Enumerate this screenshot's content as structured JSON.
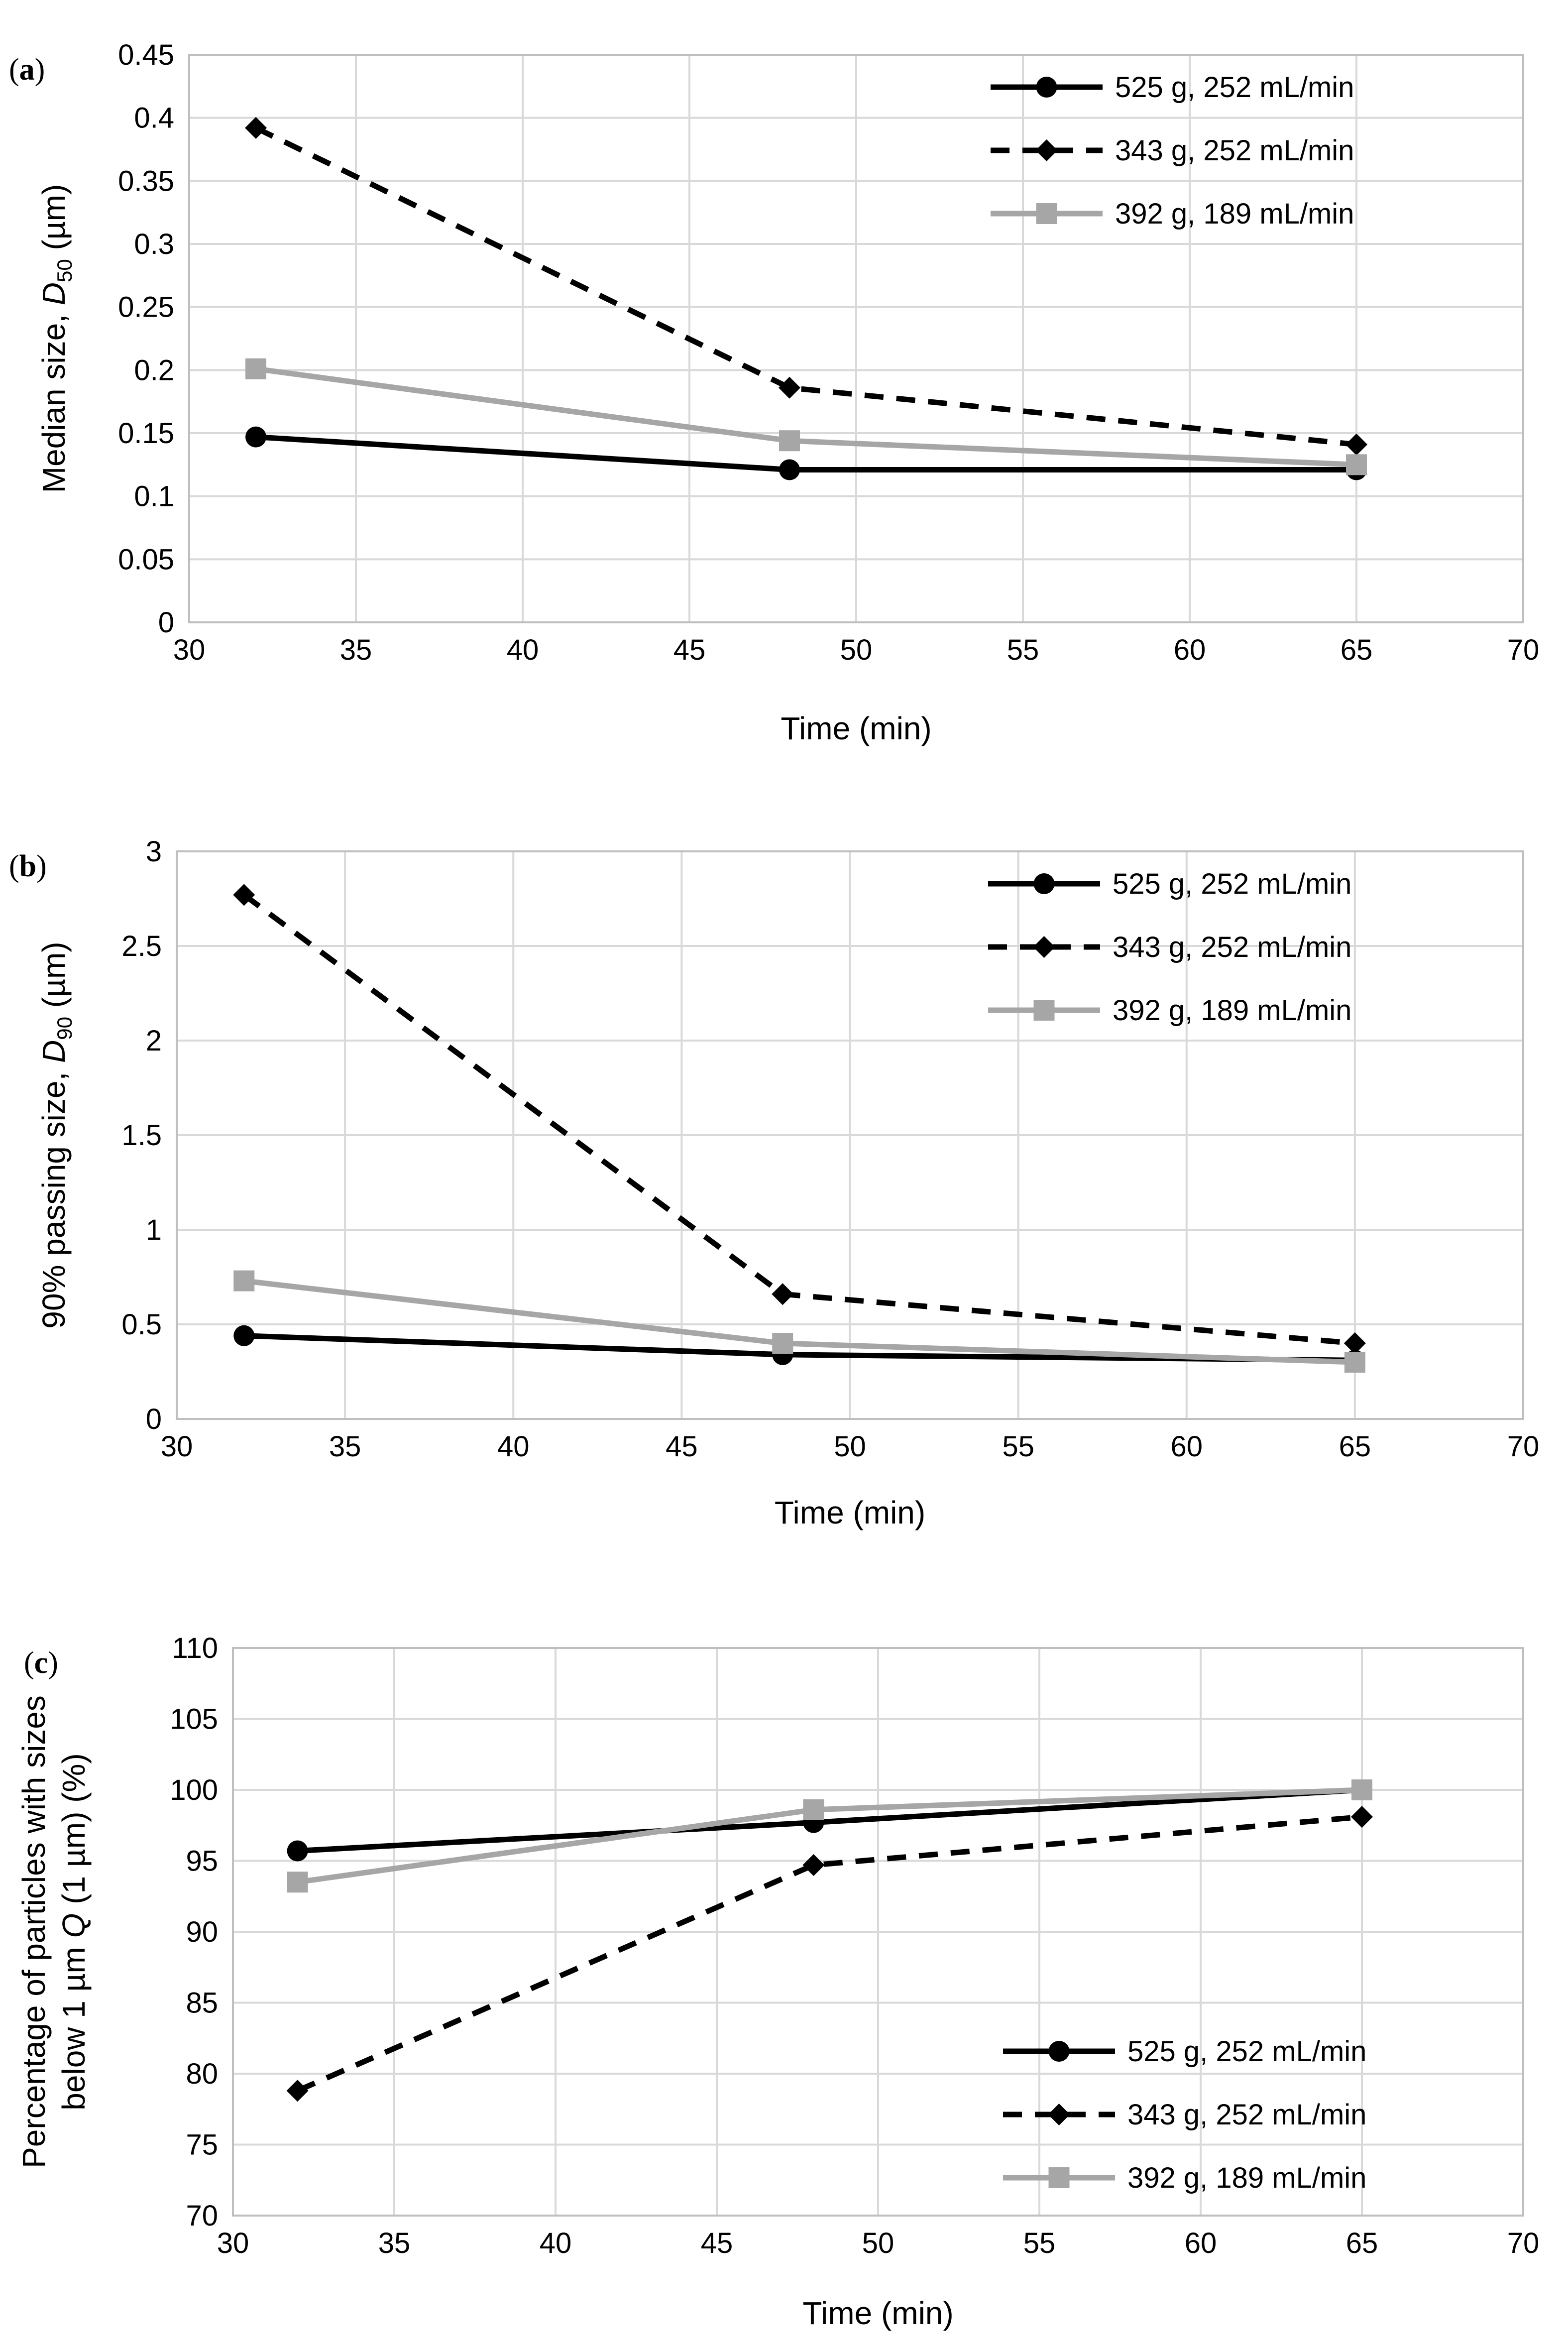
{
  "chart_data": [
    {
      "type": "line",
      "panel_label": "(a)",
      "title": "",
      "xlabel": "Time (min)",
      "ylabel": "Median size, D50 (µm)",
      "ylabel_parts": {
        "prefix": "Median size, ",
        "italic": "D",
        "subscript": "50",
        "suffix": " (µm)"
      },
      "xlim": [
        30,
        70
      ],
      "ylim": [
        0,
        0.45
      ],
      "x_ticks": [
        "30",
        "35",
        "40",
        "45",
        "50",
        "55",
        "60",
        "65",
        "70"
      ],
      "y_ticks": [
        "0",
        "0.05",
        "0.1",
        "0.15",
        "0.2",
        "0.25",
        "0.3",
        "0.35",
        "0.4",
        "0.45"
      ],
      "grid": true,
      "legend": "top-right",
      "x": [
        32,
        48,
        65
      ],
      "series": [
        {
          "name": "525 g, 252 mL/min",
          "values": [
            0.147,
            0.121,
            0.121
          ],
          "color": "#000000",
          "dash": "solid",
          "marker": "circle"
        },
        {
          "name": "343 g, 252 mL/min",
          "values": [
            0.392,
            0.186,
            0.141
          ],
          "color": "#000000",
          "dash": "dashed",
          "marker": "diamond"
        },
        {
          "name": "392 g, 189 mL/min",
          "values": [
            0.201,
            0.144,
            0.125
          ],
          "color": "#a6a6a6",
          "dash": "solid",
          "marker": "square"
        }
      ]
    },
    {
      "type": "line",
      "panel_label": "(b)",
      "title": "",
      "xlabel": "Time (min)",
      "ylabel": "90% passing size, D90 (µm)",
      "ylabel_parts": {
        "prefix": "90% passing size, ",
        "italic": "D",
        "subscript": "90",
        "suffix": " (µm)"
      },
      "xlim": [
        30,
        70
      ],
      "ylim": [
        0,
        3
      ],
      "x_ticks": [
        "30",
        "35",
        "40",
        "45",
        "50",
        "55",
        "60",
        "65",
        "70"
      ],
      "y_ticks": [
        "0",
        "0.5",
        "1",
        "1.5",
        "2",
        "2.5",
        "3"
      ],
      "grid": true,
      "legend": "top-right",
      "x": [
        32,
        48,
        65
      ],
      "series": [
        {
          "name": "525 g, 252 mL/min",
          "values": [
            0.44,
            0.34,
            0.31
          ],
          "color": "#000000",
          "dash": "solid",
          "marker": "circle"
        },
        {
          "name": "343 g, 252 mL/min",
          "values": [
            2.77,
            0.66,
            0.4
          ],
          "color": "#000000",
          "dash": "dashed",
          "marker": "diamond"
        },
        {
          "name": "392 g, 189 mL/min",
          "values": [
            0.73,
            0.4,
            0.3
          ],
          "color": "#a6a6a6",
          "dash": "solid",
          "marker": "square"
        }
      ]
    },
    {
      "type": "line",
      "panel_label": "(c)",
      "title": "",
      "xlabel": "Time (min)",
      "ylabel": "Percentage of particles with sizes below 1 µm Q (1 µm) (%)",
      "ylabel_line1": "Percentage of particles with sizes",
      "ylabel_line2_parts": {
        "prefix": "below 1 µm ",
        "italic": "Q",
        "suffix": " (1 µm) (%)"
      },
      "xlim": [
        30,
        70
      ],
      "ylim": [
        70,
        110
      ],
      "x_ticks": [
        "30",
        "35",
        "40",
        "45",
        "50",
        "55",
        "60",
        "65",
        "70"
      ],
      "y_ticks": [
        "70",
        "75",
        "80",
        "85",
        "90",
        "95",
        "100",
        "105",
        "110"
      ],
      "grid": true,
      "legend": "bottom-right",
      "x": [
        32,
        48,
        65
      ],
      "series": [
        {
          "name": "525 g, 252 mL/min",
          "values": [
            95.7,
            97.7,
            100
          ],
          "color": "#000000",
          "dash": "solid",
          "marker": "circle"
        },
        {
          "name": "343 g, 252 mL/min",
          "values": [
            78.8,
            94.7,
            98.1
          ],
          "color": "#000000",
          "dash": "dashed",
          "marker": "diamond"
        },
        {
          "name": "392 g, 189 mL/min",
          "values": [
            93.5,
            98.6,
            100
          ],
          "color": "#a6a6a6",
          "dash": "solid",
          "marker": "square"
        }
      ]
    }
  ]
}
